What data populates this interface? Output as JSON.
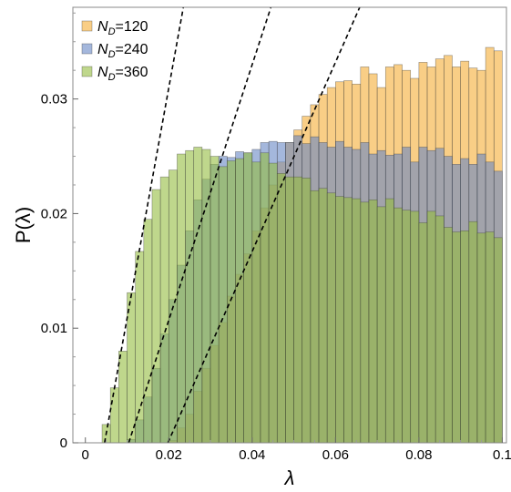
{
  "chart_data": {
    "type": "bar",
    "title": "",
    "xlabel": "λ",
    "ylabel": "P(λ)",
    "xlim": [
      -0.003,
      0.101
    ],
    "ylim": [
      0,
      0.038
    ],
    "bin_width": 0.002,
    "x_ticks": [
      0,
      0.02,
      0.04,
      0.06,
      0.08,
      0.1
    ],
    "x_tick_labels": [
      "0",
      "0.02",
      "0.04",
      "0.06",
      "0.08",
      "0.1"
    ],
    "y_ticks": [
      0,
      0.01,
      0.02,
      0.03
    ],
    "y_tick_labels": [
      "0",
      "0.01",
      "0.02",
      "0.03"
    ],
    "legend": {
      "position": "top-left",
      "entries": [
        {
          "prefix": "N",
          "subscript": "D",
          "suffix": "=120"
        },
        {
          "prefix": "N",
          "subscript": "D",
          "suffix": "=240"
        },
        {
          "prefix": "N",
          "subscript": "D",
          "suffix": "=360"
        }
      ]
    },
    "grid": false,
    "x_bin_starts": [
      0.0,
      0.002,
      0.004,
      0.006,
      0.008,
      0.01,
      0.012,
      0.014,
      0.016,
      0.018,
      0.02,
      0.022,
      0.024,
      0.026,
      0.028,
      0.03,
      0.032,
      0.034,
      0.036,
      0.038,
      0.04,
      0.042,
      0.044,
      0.046,
      0.048,
      0.05,
      0.052,
      0.054,
      0.056,
      0.058,
      0.06,
      0.062,
      0.064,
      0.066,
      0.068,
      0.07,
      0.072,
      0.074,
      0.076,
      0.078,
      0.08,
      0.082,
      0.084,
      0.086,
      0.088,
      0.09,
      0.092,
      0.094,
      0.096,
      0.098
    ],
    "series": [
      {
        "fill": "#f5ad35",
        "values": [
          0,
          0,
          0,
          0,
          0,
          0,
          0,
          0,
          0,
          0,
          0.0002,
          0.0013,
          0.0025,
          0.0045,
          0.0065,
          0.0085,
          0.0105,
          0.0128,
          0.0147,
          0.0165,
          0.0185,
          0.0205,
          0.0225,
          0.0245,
          0.0262,
          0.0273,
          0.0285,
          0.0295,
          0.0304,
          0.031,
          0.0315,
          0.0316,
          0.0313,
          0.0328,
          0.0322,
          0.031,
          0.0328,
          0.033,
          0.0325,
          0.0318,
          0.0332,
          0.0328,
          0.0335,
          0.0338,
          0.0328,
          0.0333,
          0.0327,
          0.0325,
          0.0345,
          0.0342
        ]
      },
      {
        "fill": "#6787c4",
        "values": [
          0,
          0,
          0,
          0,
          0,
          0.0003,
          0.002,
          0.004,
          0.0065,
          0.0095,
          0.0125,
          0.0155,
          0.0185,
          0.0212,
          0.023,
          0.0243,
          0.025,
          0.0249,
          0.0254,
          0.0253,
          0.0256,
          0.0262,
          0.0263,
          0.0262,
          0.0262,
          0.0268,
          0.0261,
          0.0267,
          0.0262,
          0.0258,
          0.0263,
          0.0258,
          0.0256,
          0.0262,
          0.0252,
          0.0255,
          0.0251,
          0.0252,
          0.0258,
          0.0245,
          0.0258,
          0.0255,
          0.0257,
          0.025,
          0.0243,
          0.0248,
          0.0243,
          0.0252,
          0.0245,
          0.0237
        ]
      },
      {
        "fill": "#95bd3f",
        "values": [
          0,
          0,
          0.0016,
          0.0048,
          0.008,
          0.0131,
          0.0167,
          0.0195,
          0.0221,
          0.0232,
          0.0238,
          0.0252,
          0.0255,
          0.0258,
          0.0256,
          0.025,
          0.0241,
          0.0246,
          0.0248,
          0.0253,
          0.0245,
          0.0253,
          0.0244,
          0.0235,
          0.0232,
          0.0232,
          0.0231,
          0.022,
          0.0222,
          0.0218,
          0.0215,
          0.0214,
          0.0213,
          0.021,
          0.0212,
          0.0206,
          0.0213,
          0.0205,
          0.0203,
          0.0202,
          0.0192,
          0.0202,
          0.0198,
          0.0188,
          0.0184,
          0.0185,
          0.0193,
          0.0183,
          0.0184,
          0.0179
        ]
      }
    ],
    "reference_lines": [
      {
        "x": [
          0.0046,
          0.0235
        ],
        "y": [
          0,
          0.038
        ],
        "style": "dashed"
      },
      {
        "x": [
          0.0104,
          0.0445
        ],
        "y": [
          0,
          0.038
        ],
        "style": "dashed"
      },
      {
        "x": [
          0.0198,
          0.0658
        ],
        "y": [
          0,
          0.038
        ],
        "style": "dashed"
      }
    ]
  }
}
